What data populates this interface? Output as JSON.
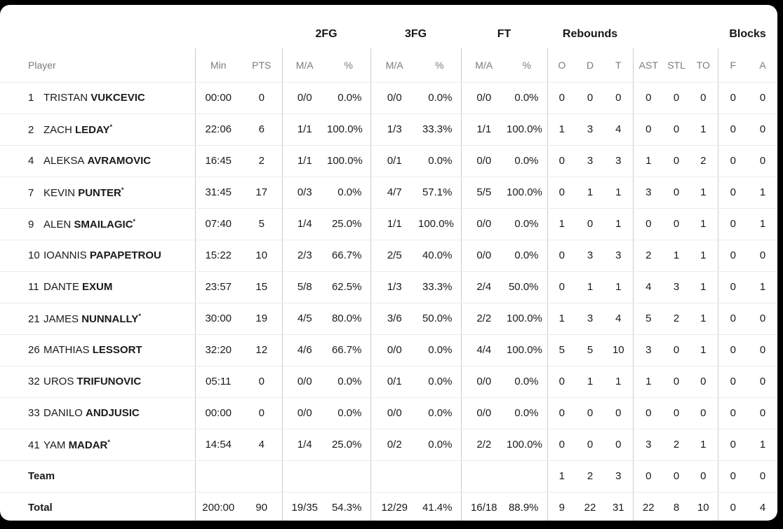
{
  "colors": {
    "page_bg": "#000000",
    "card_bg": "#ffffff",
    "header_text": "#7b7b80",
    "data_text": "#1a1a1e",
    "divider": "#ebebed",
    "separator": "#cbcbcf"
  },
  "table": {
    "group_headers": {
      "fg2": "2FG",
      "fg3": "3FG",
      "ft": "FT",
      "rebounds": "Rebounds",
      "blocks": "Blocks"
    },
    "columns": {
      "player": "Player",
      "min": "Min",
      "pts": "PTS",
      "ma": "M/A",
      "pct": "%",
      "reb_o": "O",
      "reb_d": "D",
      "reb_t": "T",
      "ast": "AST",
      "stl": "STL",
      "to": "TO",
      "blk_f": "F",
      "blk_a": "A"
    },
    "star_glyph": "*",
    "rows": [
      {
        "num": "1",
        "first": "TRISTAN",
        "last": "VUKCEVIC",
        "starter": false,
        "min": "00:00",
        "pts": "0",
        "fg2_ma": "0/0",
        "fg2_pct": "0.0%",
        "fg3_ma": "0/0",
        "fg3_pct": "0.0%",
        "ft_ma": "0/0",
        "ft_pct": "0.0%",
        "reb_o": "0",
        "reb_d": "0",
        "reb_t": "0",
        "ast": "0",
        "stl": "0",
        "to": "0",
        "blk_f": "0",
        "blk_a": "0"
      },
      {
        "num": "2",
        "first": "ZACH",
        "last": "LEDAY",
        "starter": true,
        "min": "22:06",
        "pts": "6",
        "fg2_ma": "1/1",
        "fg2_pct": "100.0%",
        "fg3_ma": "1/3",
        "fg3_pct": "33.3%",
        "ft_ma": "1/1",
        "ft_pct": "100.0%",
        "reb_o": "1",
        "reb_d": "3",
        "reb_t": "4",
        "ast": "0",
        "stl": "0",
        "to": "1",
        "blk_f": "0",
        "blk_a": "0"
      },
      {
        "num": "4",
        "first": "ALEKSA",
        "last": "AVRAMOVIC",
        "starter": false,
        "min": "16:45",
        "pts": "2",
        "fg2_ma": "1/1",
        "fg2_pct": "100.0%",
        "fg3_ma": "0/1",
        "fg3_pct": "0.0%",
        "ft_ma": "0/0",
        "ft_pct": "0.0%",
        "reb_o": "0",
        "reb_d": "3",
        "reb_t": "3",
        "ast": "1",
        "stl": "0",
        "to": "2",
        "blk_f": "0",
        "blk_a": "0"
      },
      {
        "num": "7",
        "first": "KEVIN",
        "last": "PUNTER",
        "starter": true,
        "min": "31:45",
        "pts": "17",
        "fg2_ma": "0/3",
        "fg2_pct": "0.0%",
        "fg3_ma": "4/7",
        "fg3_pct": "57.1%",
        "ft_ma": "5/5",
        "ft_pct": "100.0%",
        "reb_o": "0",
        "reb_d": "1",
        "reb_t": "1",
        "ast": "3",
        "stl": "0",
        "to": "1",
        "blk_f": "0",
        "blk_a": "1"
      },
      {
        "num": "9",
        "first": "ALEN",
        "last": "SMAILAGIC",
        "starter": true,
        "min": "07:40",
        "pts": "5",
        "fg2_ma": "1/4",
        "fg2_pct": "25.0%",
        "fg3_ma": "1/1",
        "fg3_pct": "100.0%",
        "ft_ma": "0/0",
        "ft_pct": "0.0%",
        "reb_o": "1",
        "reb_d": "0",
        "reb_t": "1",
        "ast": "0",
        "stl": "0",
        "to": "1",
        "blk_f": "0",
        "blk_a": "1"
      },
      {
        "num": "10",
        "first": "IOANNIS",
        "last": "PAPAPETROU",
        "starter": false,
        "min": "15:22",
        "pts": "10",
        "fg2_ma": "2/3",
        "fg2_pct": "66.7%",
        "fg3_ma": "2/5",
        "fg3_pct": "40.0%",
        "ft_ma": "0/0",
        "ft_pct": "0.0%",
        "reb_o": "0",
        "reb_d": "3",
        "reb_t": "3",
        "ast": "2",
        "stl": "1",
        "to": "1",
        "blk_f": "0",
        "blk_a": "0"
      },
      {
        "num": "11",
        "first": "DANTE",
        "last": "EXUM",
        "starter": false,
        "min": "23:57",
        "pts": "15",
        "fg2_ma": "5/8",
        "fg2_pct": "62.5%",
        "fg3_ma": "1/3",
        "fg3_pct": "33.3%",
        "ft_ma": "2/4",
        "ft_pct": "50.0%",
        "reb_o": "0",
        "reb_d": "1",
        "reb_t": "1",
        "ast": "4",
        "stl": "3",
        "to": "1",
        "blk_f": "0",
        "blk_a": "1"
      },
      {
        "num": "21",
        "first": "JAMES",
        "last": "NUNNALLY",
        "starter": true,
        "min": "30:00",
        "pts": "19",
        "fg2_ma": "4/5",
        "fg2_pct": "80.0%",
        "fg3_ma": "3/6",
        "fg3_pct": "50.0%",
        "ft_ma": "2/2",
        "ft_pct": "100.0%",
        "reb_o": "1",
        "reb_d": "3",
        "reb_t": "4",
        "ast": "5",
        "stl": "2",
        "to": "1",
        "blk_f": "0",
        "blk_a": "0"
      },
      {
        "num": "26",
        "first": "MATHIAS",
        "last": "LESSORT",
        "starter": false,
        "min": "32:20",
        "pts": "12",
        "fg2_ma": "4/6",
        "fg2_pct": "66.7%",
        "fg3_ma": "0/0",
        "fg3_pct": "0.0%",
        "ft_ma": "4/4",
        "ft_pct": "100.0%",
        "reb_o": "5",
        "reb_d": "5",
        "reb_t": "10",
        "ast": "3",
        "stl": "0",
        "to": "1",
        "blk_f": "0",
        "blk_a": "0"
      },
      {
        "num": "32",
        "first": "UROS",
        "last": "TRIFUNOVIC",
        "starter": false,
        "min": "05:11",
        "pts": "0",
        "fg2_ma": "0/0",
        "fg2_pct": "0.0%",
        "fg3_ma": "0/1",
        "fg3_pct": "0.0%",
        "ft_ma": "0/0",
        "ft_pct": "0.0%",
        "reb_o": "0",
        "reb_d": "1",
        "reb_t": "1",
        "ast": "1",
        "stl": "0",
        "to": "0",
        "blk_f": "0",
        "blk_a": "0"
      },
      {
        "num": "33",
        "first": "DANILO",
        "last": "ANDJUSIC",
        "starter": false,
        "min": "00:00",
        "pts": "0",
        "fg2_ma": "0/0",
        "fg2_pct": "0.0%",
        "fg3_ma": "0/0",
        "fg3_pct": "0.0%",
        "ft_ma": "0/0",
        "ft_pct": "0.0%",
        "reb_o": "0",
        "reb_d": "0",
        "reb_t": "0",
        "ast": "0",
        "stl": "0",
        "to": "0",
        "blk_f": "0",
        "blk_a": "0"
      },
      {
        "num": "41",
        "first": "YAM",
        "last": "MADAR",
        "starter": true,
        "min": "14:54",
        "pts": "4",
        "fg2_ma": "1/4",
        "fg2_pct": "25.0%",
        "fg3_ma": "0/2",
        "fg3_pct": "0.0%",
        "ft_ma": "2/2",
        "ft_pct": "100.0%",
        "reb_o": "0",
        "reb_d": "0",
        "reb_t": "0",
        "ast": "3",
        "stl": "2",
        "to": "1",
        "blk_f": "0",
        "blk_a": "1"
      }
    ],
    "team_row": {
      "label": "Team",
      "min": "",
      "pts": "",
      "fg2_ma": "",
      "fg2_pct": "",
      "fg3_ma": "",
      "fg3_pct": "",
      "ft_ma": "",
      "ft_pct": "",
      "reb_o": "1",
      "reb_d": "2",
      "reb_t": "3",
      "ast": "0",
      "stl": "0",
      "to": "0",
      "blk_f": "0",
      "blk_a": "0"
    },
    "total_row": {
      "label": "Total",
      "min": "200:00",
      "pts": "90",
      "fg2_ma": "19/35",
      "fg2_pct": "54.3%",
      "fg3_ma": "12/29",
      "fg3_pct": "41.4%",
      "ft_ma": "16/18",
      "ft_pct": "88.9%",
      "reb_o": "9",
      "reb_d": "22",
      "reb_t": "31",
      "ast": "22",
      "stl": "8",
      "to": "10",
      "blk_f": "0",
      "blk_a": "4"
    }
  }
}
